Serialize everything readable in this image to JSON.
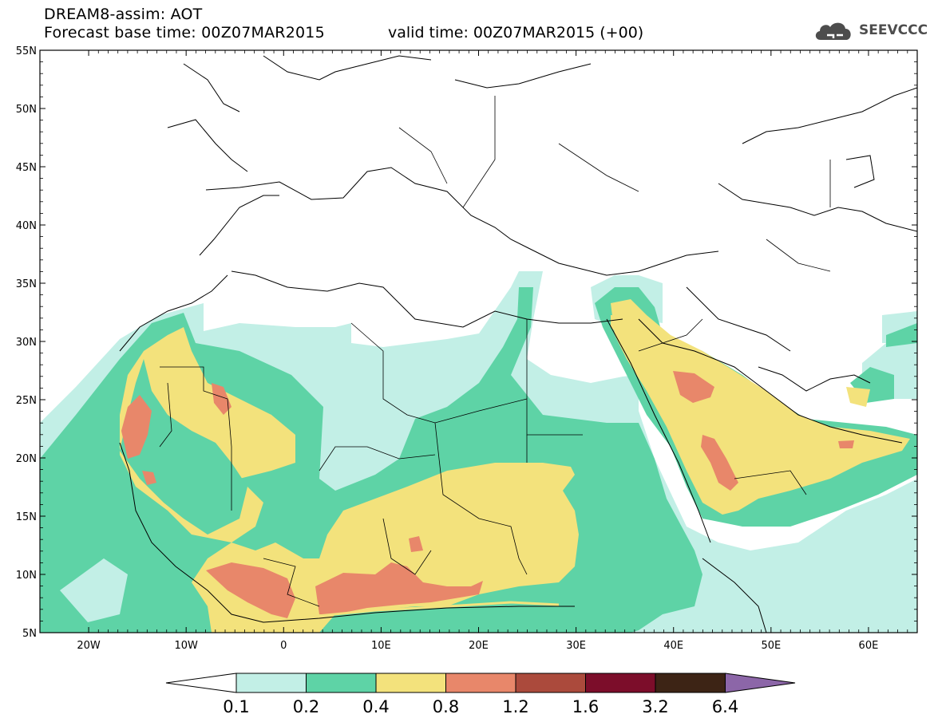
{
  "header": {
    "line1": "DREAM8-assim: AOT",
    "line2": "Forecast base time: 00Z07MAR2015",
    "valid": "valid time: 00Z07MAR2015 (+00)"
  },
  "logo": {
    "text": "SEEVCCC",
    "icon": "cloud-icon"
  },
  "map": {
    "lon_range": [
      -25,
      65
    ],
    "lat_range": [
      5,
      55
    ],
    "lat_labels": [
      "55N",
      "50N",
      "45N",
      "40N",
      "35N",
      "30N",
      "25N",
      "20N",
      "15N",
      "10N",
      "5N"
    ],
    "lat_values": [
      55,
      50,
      45,
      40,
      35,
      30,
      25,
      20,
      15,
      10,
      5
    ],
    "lon_labels": [
      "20W",
      "10W",
      "0",
      "10E",
      "20E",
      "30E",
      "40E",
      "50E",
      "60E"
    ],
    "lon_values": [
      -20,
      -10,
      0,
      10,
      20,
      30,
      40,
      50,
      60
    ]
  },
  "legend": {
    "labels": [
      "0.1",
      "0.2",
      "0.4",
      "0.8",
      "1.2",
      "1.6",
      "3.2",
      "6.4"
    ],
    "colors": [
      "#ffffff",
      "#c2efe6",
      "#5ed3a6",
      "#f3e27c",
      "#e8876a",
      "#ab4a3c",
      "#7c0d2a",
      "#3d2415",
      "#8c66a8"
    ]
  }
}
